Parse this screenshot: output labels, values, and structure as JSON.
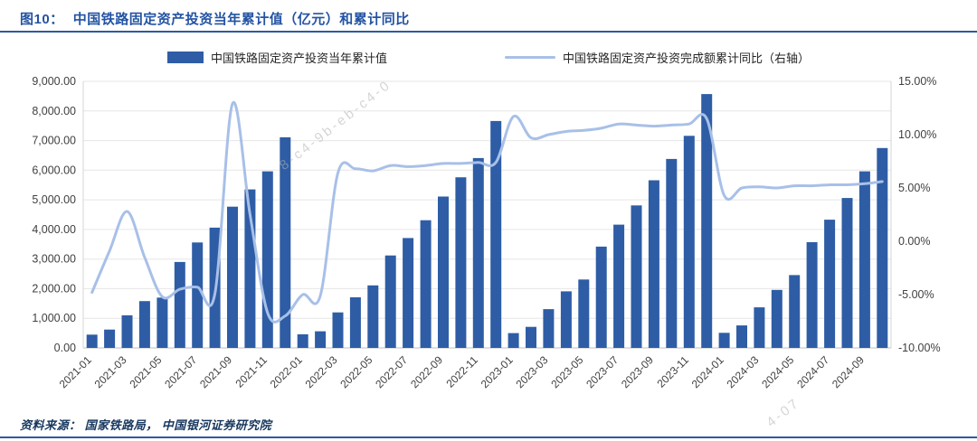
{
  "title": {
    "prefix": "图10：",
    "text": "中国铁路固定资产投资当年累计值（亿元）和累计同比"
  },
  "legend": [
    {
      "label": "中国铁路固定资产投资当年累计值",
      "type": "bar",
      "color": "#2E5DA6"
    },
    {
      "label": "中国铁路固定资产投资完成额累计同比（右轴）",
      "type": "line",
      "color": "#A8C0E8"
    }
  ],
  "source": "资料来源： 国家铁路局， 中国银河证券研究院",
  "watermark": {
    "fragments": [
      "8-c4-9b-eb-c4-0",
      "4-07"
    ]
  },
  "colors": {
    "bar": "#2E5DA6",
    "line": "#A8C0E8",
    "title": "#2353A3",
    "rule": "#2E5AA0",
    "axis_text": "#404040",
    "grid": "#E6E6E6",
    "grid_bottom": "#BFBFBF",
    "axis_line": "#D5D5D5",
    "source": "#17375E"
  },
  "chart_data": {
    "type": "bar",
    "title": "中国铁路固定资产投资当年累计值（亿元）和累计同比",
    "x": [
      "2021-01",
      "2021-02",
      "2021-03",
      "2021-04",
      "2021-05",
      "2021-06",
      "2021-07",
      "2021-08",
      "2021-09",
      "2021-10",
      "2021-11",
      "2021-12",
      "2022-01",
      "2022-02",
      "2022-03",
      "2022-04",
      "2022-05",
      "2022-06",
      "2022-07",
      "2022-08",
      "2022-09",
      "2022-10",
      "2022-11",
      "2022-12",
      "2023-01",
      "2023-02",
      "2023-03",
      "2023-04",
      "2023-05",
      "2023-06",
      "2023-07",
      "2023-08",
      "2023-09",
      "2023-10",
      "2023-11",
      "2023-12",
      "2024-01",
      "2024-02",
      "2024-03",
      "2024-04",
      "2024-05",
      "2024-06",
      "2024-07",
      "2024-08",
      "2024-09",
      "2024-10"
    ],
    "x_tick_every": 2,
    "series": [
      {
        "name": "中国铁路固定资产投资当年累计值",
        "type": "bar",
        "axis": "left",
        "values": [
          450,
          620,
          1100,
          1580,
          1700,
          2900,
          3560,
          4060,
          4770,
          5350,
          5960,
          7110,
          460,
          560,
          1200,
          1710,
          2110,
          3120,
          3710,
          4310,
          5110,
          5760,
          6410,
          7660,
          500,
          710,
          1310,
          1910,
          2310,
          3420,
          4160,
          4810,
          5660,
          6380,
          7160,
          8570,
          510,
          760,
          1370,
          1960,
          2460,
          3570,
          4330,
          5060,
          5960,
          6750
        ]
      },
      {
        "name": "中国铁路固定资产投资完成额累计同比（右轴）",
        "type": "line",
        "axis": "right",
        "values": [
          -4.8,
          -0.9,
          2.8,
          -1.5,
          -5.2,
          -4.5,
          -4.3,
          -4.9,
          12.9,
          2.5,
          -6.7,
          -7.0,
          -5.0,
          -5.1,
          6.4,
          6.8,
          6.6,
          7.1,
          7.0,
          7.1,
          7.3,
          7.3,
          7.4,
          7.4,
          11.7,
          9.7,
          10.0,
          10.3,
          10.4,
          10.6,
          11.0,
          10.9,
          10.8,
          10.9,
          11.0,
          11.5,
          4.3,
          5.0,
          5.1,
          5.0,
          5.2,
          5.2,
          5.3,
          5.3,
          5.4,
          5.6
        ]
      }
    ],
    "left_axis": {
      "min": 0,
      "max": 9000,
      "step": 1000,
      "tick_labels": [
        "9,000.00",
        "8,000.00",
        "7,000.00",
        "6,000.00",
        "5,000.00",
        "4,000.00",
        "3,000.00",
        "2,000.00",
        "1,000.00",
        "0.00"
      ]
    },
    "right_axis": {
      "min": -10,
      "max": 15,
      "step": 5,
      "tick_labels": [
        "15.00%",
        "10.00%",
        "5.00%",
        "0.00%",
        "-5.00%",
        "-10.00%"
      ]
    },
    "grid": true,
    "legend_position": "top"
  }
}
